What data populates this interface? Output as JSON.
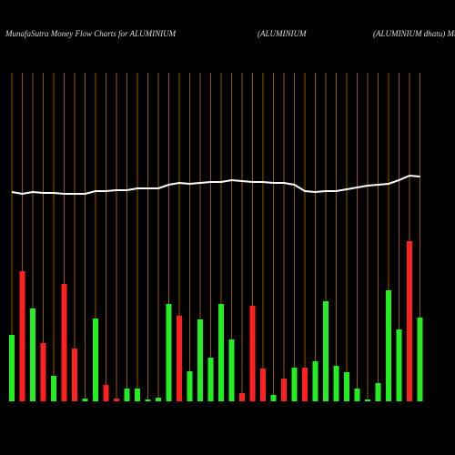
{
  "chart_data": {
    "type": "bar",
    "titles": [
      "MunafaSutra  Money Flow  Charts for ALUMINIUM",
      "(ALUMINIUM",
      "(ALUMINIUM dhatu) Mu"
    ],
    "categories": [
      null,
      null,
      null,
      null,
      null,
      null,
      null,
      null,
      null,
      null,
      null,
      null,
      null,
      null,
      null,
      null,
      null,
      null,
      null,
      null,
      null,
      null,
      null,
      null,
      null,
      null,
      null,
      null,
      null,
      null,
      null,
      null,
      null,
      null,
      null,
      null,
      null,
      null,
      null,
      null
    ],
    "values": [
      73,
      143,
      102,
      64,
      28,
      129,
      58,
      3,
      91,
      18,
      3,
      14,
      14,
      2,
      4,
      107,
      94,
      33,
      90,
      48,
      107,
      68,
      9,
      105,
      36,
      7,
      25,
      37,
      37,
      44,
      110,
      39,
      32,
      14,
      2,
      20,
      122,
      79,
      176,
      92
    ],
    "colors": [
      "#22ee22",
      "#ff2020",
      "#22ee22",
      "#ff2020",
      "#22ee22",
      "#ff2020",
      "#ff2020",
      "#22ee22",
      "#22ee22",
      "#ff2020",
      "#ff2020",
      "#22ee22",
      "#22ee22",
      "#22ee22",
      "#22ee22",
      "#22ee22",
      "#ff2020",
      "#22ee22",
      "#22ee22",
      "#22ee22",
      "#22ee22",
      "#22ee22",
      "#ff2020",
      "#ff2020",
      "#ff2020",
      "#22ee22",
      "#ff2020",
      "#22ee22",
      "#ff2020",
      "#22ee22",
      "#22ee22",
      "#22ee22",
      "#22ee22",
      "#22ee22",
      "#22ee22",
      "#22ee22",
      "#22ee22",
      "#22ee22",
      "#ff2020",
      "#22ee22"
    ],
    "line": {
      "color": "#ffffff",
      "values": [
        230,
        228,
        230,
        229,
        229,
        228,
        228,
        228,
        231,
        231,
        232,
        232,
        234,
        234,
        234,
        238,
        240,
        239,
        240,
        241,
        241,
        243,
        242,
        241,
        241,
        240,
        240,
        238,
        231,
        230,
        231,
        231,
        233,
        235,
        237,
        238,
        239,
        243,
        248,
        247
      ]
    },
    "ylim": [
      0,
      361
    ],
    "grid_color": "#b86e00"
  }
}
